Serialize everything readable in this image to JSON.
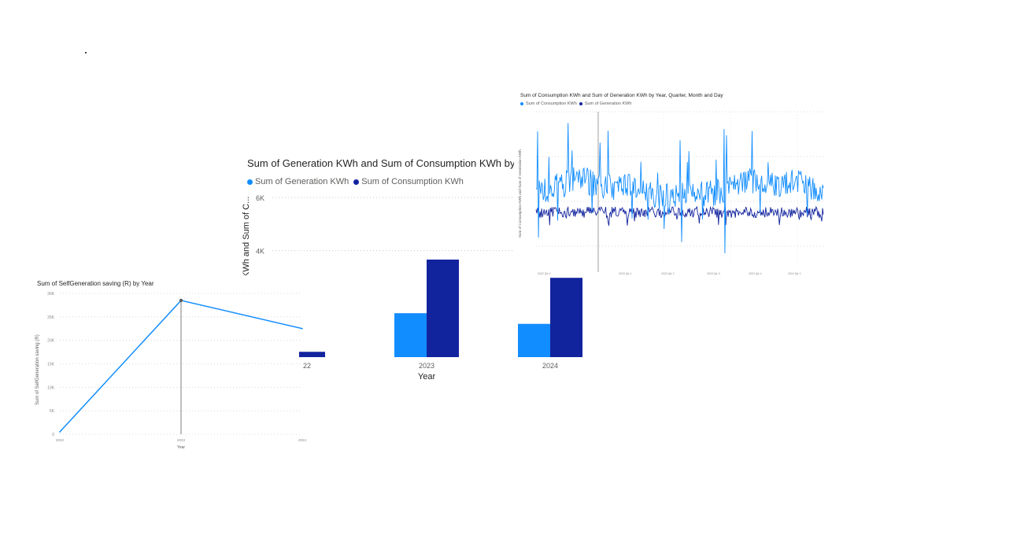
{
  "chart_data": [
    {
      "type": "bar",
      "title": "Sum of Generation KWh and Sum of Consumption KWh by Year",
      "xlabel": "Year",
      "ylabel": "KWh and Sum of C...",
      "categories": [
        "2022",
        "2023",
        "2024"
      ],
      "category_labels": [
        "22",
        "2023",
        "2024"
      ],
      "ylim": [
        0,
        6000
      ],
      "yticks": [
        {
          "v": 4000,
          "label": "4K"
        },
        {
          "v": 6000,
          "label": "6K"
        }
      ],
      "series": [
        {
          "name": "Sum of Generation KWh",
          "color": "#118dff",
          "values": [
            0,
            1650,
            1250
          ]
        },
        {
          "name": "Sum of Consumption KWh",
          "color": "#12239e",
          "values": [
            200,
            5150,
            2980
          ]
        }
      ],
      "grid": true,
      "legend": "top-left"
    },
    {
      "type": "line",
      "title": "Sum of SelfGeneration saving (R) by Year",
      "xlabel": "Year",
      "ylabel": "Sum of SelfGeneration saving (R)",
      "x": [
        "2022",
        "2023",
        "2024"
      ],
      "ylim": [
        0,
        30000
      ],
      "yticks": [
        "0",
        "5K",
        "10K",
        "15K",
        "20K",
        "25K",
        "30K"
      ],
      "series": [
        {
          "name": "Sum of SelfGeneration saving (R)",
          "color": "#118dff",
          "values": [
            500,
            28500,
            22500
          ]
        }
      ],
      "grid": true
    },
    {
      "type": "line",
      "title": "Sum of Consumption KWh and Sum of Generation KWh by Year, Quarter, Month and Day",
      "ylabel": "Sum of Consumption KWh and Sum of Generation KWh",
      "x_labels": [
        "2022 Qtr 4",
        "2023 Qtr 1",
        "2023 Qtr 2",
        "2023 Qtr 3",
        "2023 Qtr 4",
        "2024 Qtr 1",
        "2024 Qtr 2"
      ],
      "series": [
        {
          "name": "Sum of Consumption KWh",
          "color": "#118dff"
        },
        {
          "name": "Sum of Generation KWh",
          "color": "#12239e"
        }
      ],
      "legend": "top-left"
    }
  ]
}
